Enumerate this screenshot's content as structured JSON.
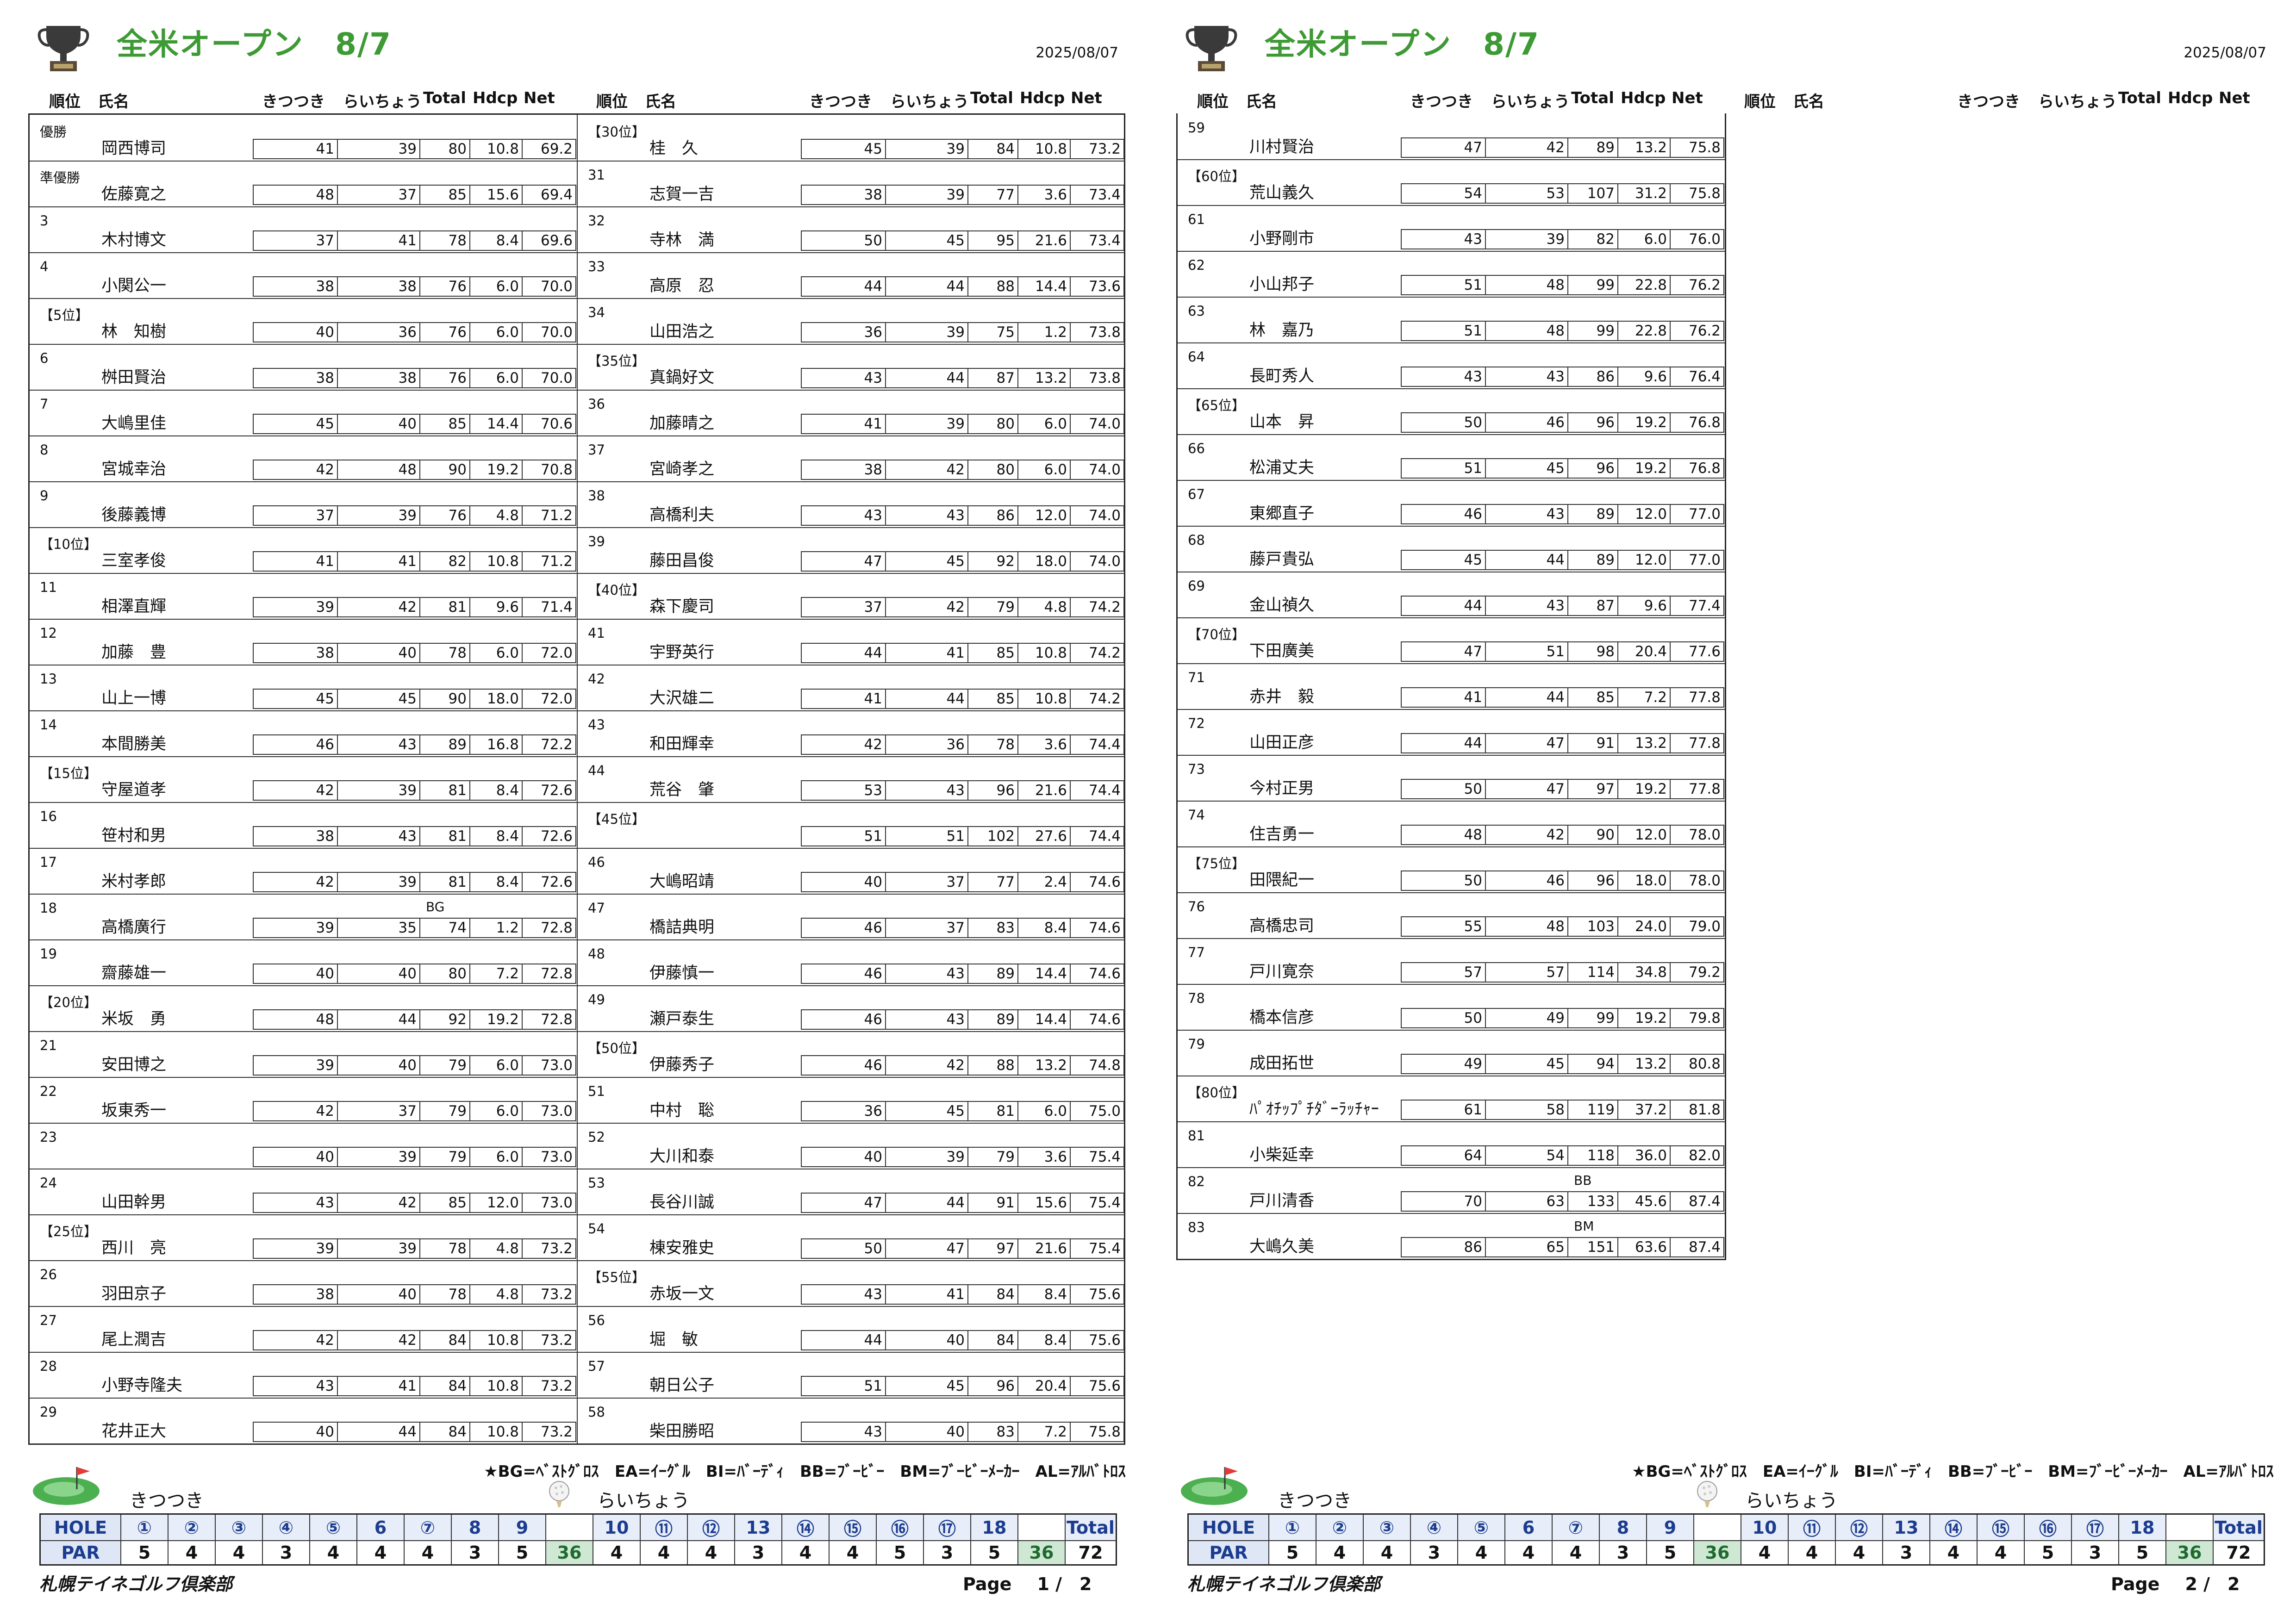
{
  "pages": [
    {
      "title": "全米オープン　8/7",
      "date": "2025/08/07",
      "headers": {
        "rank": "順位",
        "name": "氏名",
        "out": "きつつき",
        "in": "らいちょう",
        "total": "Total",
        "hdcp": "Hdcp",
        "net": "Net"
      },
      "left": [
        {
          "rank": "優勝",
          "name": "岡西博司",
          "out": "41",
          "in": "39",
          "total": "80",
          "hdcp": "10.8",
          "net": "69.2",
          "mark": ""
        },
        {
          "rank": "準優勝",
          "name": "佐藤寛之",
          "out": "48",
          "in": "37",
          "total": "85",
          "hdcp": "15.6",
          "net": "69.4",
          "mark": ""
        },
        {
          "rank": "3",
          "name": "木村博文",
          "out": "37",
          "in": "41",
          "total": "78",
          "hdcp": "8.4",
          "net": "69.6",
          "mark": ""
        },
        {
          "rank": "4",
          "name": "小関公一",
          "out": "38",
          "in": "38",
          "total": "76",
          "hdcp": "6.0",
          "net": "70.0",
          "mark": ""
        },
        {
          "rank": "【5位】",
          "name": "林　知樹",
          "out": "40",
          "in": "36",
          "total": "76",
          "hdcp": "6.0",
          "net": "70.0",
          "mark": ""
        },
        {
          "rank": "6",
          "name": "桝田賢治",
          "out": "38",
          "in": "38",
          "total": "76",
          "hdcp": "6.0",
          "net": "70.0",
          "mark": ""
        },
        {
          "rank": "7",
          "name": "大嶋里佳",
          "out": "45",
          "in": "40",
          "total": "85",
          "hdcp": "14.4",
          "net": "70.6",
          "mark": ""
        },
        {
          "rank": "8",
          "name": "宮城幸治",
          "out": "42",
          "in": "48",
          "total": "90",
          "hdcp": "19.2",
          "net": "70.8",
          "mark": ""
        },
        {
          "rank": "9",
          "name": "後藤義博",
          "out": "37",
          "in": "39",
          "total": "76",
          "hdcp": "4.8",
          "net": "71.2",
          "mark": ""
        },
        {
          "rank": "【10位】",
          "name": "三室孝俊",
          "out": "41",
          "in": "41",
          "total": "82",
          "hdcp": "10.8",
          "net": "71.2",
          "mark": ""
        },
        {
          "rank": "11",
          "name": "相澤直輝",
          "out": "39",
          "in": "42",
          "total": "81",
          "hdcp": "9.6",
          "net": "71.4",
          "mark": ""
        },
        {
          "rank": "12",
          "name": "加藤　豊",
          "out": "38",
          "in": "40",
          "total": "78",
          "hdcp": "6.0",
          "net": "72.0",
          "mark": ""
        },
        {
          "rank": "13",
          "name": "山上一博",
          "out": "45",
          "in": "45",
          "total": "90",
          "hdcp": "18.0",
          "net": "72.0",
          "mark": ""
        },
        {
          "rank": "14",
          "name": "本間勝美",
          "out": "46",
          "in": "43",
          "total": "89",
          "hdcp": "16.8",
          "net": "72.2",
          "mark": ""
        },
        {
          "rank": "【15位】",
          "name": "守屋道孝",
          "out": "42",
          "in": "39",
          "total": "81",
          "hdcp": "8.4",
          "net": "72.6",
          "mark": ""
        },
        {
          "rank": "16",
          "name": "笹村和男",
          "out": "38",
          "in": "43",
          "total": "81",
          "hdcp": "8.4",
          "net": "72.6",
          "mark": ""
        },
        {
          "rank": "17",
          "name": "米村孝郎",
          "out": "42",
          "in": "39",
          "total": "81",
          "hdcp": "8.4",
          "net": "72.6",
          "mark": ""
        },
        {
          "rank": "18",
          "name": "高橋廣行",
          "out": "39",
          "in": "35",
          "total": "74",
          "hdcp": "1.2",
          "net": "72.8",
          "mark": "BG"
        },
        {
          "rank": "19",
          "name": "齋藤雄一",
          "out": "40",
          "in": "40",
          "total": "80",
          "hdcp": "7.2",
          "net": "72.8",
          "mark": ""
        },
        {
          "rank": "【20位】",
          "name": "米坂　勇",
          "out": "48",
          "in": "44",
          "total": "92",
          "hdcp": "19.2",
          "net": "72.8",
          "mark": ""
        },
        {
          "rank": "21",
          "name": "安田博之",
          "out": "39",
          "in": "40",
          "total": "79",
          "hdcp": "6.0",
          "net": "73.0",
          "mark": ""
        },
        {
          "rank": "22",
          "name": "坂東秀一",
          "out": "42",
          "in": "37",
          "total": "79",
          "hdcp": "6.0",
          "net": "73.0",
          "mark": ""
        },
        {
          "rank": "23",
          "name": "",
          "out": "40",
          "in": "39",
          "total": "79",
          "hdcp": "6.0",
          "net": "73.0",
          "mark": ""
        },
        {
          "rank": "24",
          "name": "山田幹男",
          "out": "43",
          "in": "42",
          "total": "85",
          "hdcp": "12.0",
          "net": "73.0",
          "mark": ""
        },
        {
          "rank": "【25位】",
          "name": "西川　亮",
          "out": "39",
          "in": "39",
          "total": "78",
          "hdcp": "4.8",
          "net": "73.2",
          "mark": ""
        },
        {
          "rank": "26",
          "name": "羽田京子",
          "out": "38",
          "in": "40",
          "total": "78",
          "hdcp": "4.8",
          "net": "73.2",
          "mark": ""
        },
        {
          "rank": "27",
          "name": "尾上潤吉",
          "out": "42",
          "in": "42",
          "total": "84",
          "hdcp": "10.8",
          "net": "73.2",
          "mark": ""
        },
        {
          "rank": "28",
          "name": "小野寺隆夫",
          "out": "43",
          "in": "41",
          "total": "84",
          "hdcp": "10.8",
          "net": "73.2",
          "mark": ""
        },
        {
          "rank": "29",
          "name": "花井正大",
          "out": "40",
          "in": "44",
          "total": "84",
          "hdcp": "10.8",
          "net": "73.2",
          "mark": ""
        }
      ],
      "right": [
        {
          "rank": "【30位】",
          "name": "桂　久",
          "out": "45",
          "in": "39",
          "total": "84",
          "hdcp": "10.8",
          "net": "73.2",
          "mark": ""
        },
        {
          "rank": "31",
          "name": "志賀一吉",
          "out": "38",
          "in": "39",
          "total": "77",
          "hdcp": "3.6",
          "net": "73.4",
          "mark": ""
        },
        {
          "rank": "32",
          "name": "寺林　満",
          "out": "50",
          "in": "45",
          "total": "95",
          "hdcp": "21.6",
          "net": "73.4",
          "mark": ""
        },
        {
          "rank": "33",
          "name": "高原　忍",
          "out": "44",
          "in": "44",
          "total": "88",
          "hdcp": "14.4",
          "net": "73.6",
          "mark": ""
        },
        {
          "rank": "34",
          "name": "山田浩之",
          "out": "36",
          "in": "39",
          "total": "75",
          "hdcp": "1.2",
          "net": "73.8",
          "mark": ""
        },
        {
          "rank": "【35位】",
          "name": "真鍋好文",
          "out": "43",
          "in": "44",
          "total": "87",
          "hdcp": "13.2",
          "net": "73.8",
          "mark": ""
        },
        {
          "rank": "36",
          "name": "加藤晴之",
          "out": "41",
          "in": "39",
          "total": "80",
          "hdcp": "6.0",
          "net": "74.0",
          "mark": ""
        },
        {
          "rank": "37",
          "name": "宮崎孝之",
          "out": "38",
          "in": "42",
          "total": "80",
          "hdcp": "6.0",
          "net": "74.0",
          "mark": ""
        },
        {
          "rank": "38",
          "name": "高橋利夫",
          "out": "43",
          "in": "43",
          "total": "86",
          "hdcp": "12.0",
          "net": "74.0",
          "mark": ""
        },
        {
          "rank": "39",
          "name": "藤田昌俊",
          "out": "47",
          "in": "45",
          "total": "92",
          "hdcp": "18.0",
          "net": "74.0",
          "mark": ""
        },
        {
          "rank": "【40位】",
          "name": "森下慶司",
          "out": "37",
          "in": "42",
          "total": "79",
          "hdcp": "4.8",
          "net": "74.2",
          "mark": ""
        },
        {
          "rank": "41",
          "name": "宇野英行",
          "out": "44",
          "in": "41",
          "total": "85",
          "hdcp": "10.8",
          "net": "74.2",
          "mark": ""
        },
        {
          "rank": "42",
          "name": "大沢雄二",
          "out": "41",
          "in": "44",
          "total": "85",
          "hdcp": "10.8",
          "net": "74.2",
          "mark": ""
        },
        {
          "rank": "43",
          "name": "和田輝幸",
          "out": "42",
          "in": "36",
          "total": "78",
          "hdcp": "3.6",
          "net": "74.4",
          "mark": ""
        },
        {
          "rank": "44",
          "name": "荒谷　肇",
          "out": "53",
          "in": "43",
          "total": "96",
          "hdcp": "21.6",
          "net": "74.4",
          "mark": ""
        },
        {
          "rank": "【45位】",
          "name": "",
          "out": "51",
          "in": "51",
          "total": "102",
          "hdcp": "27.6",
          "net": "74.4",
          "mark": ""
        },
        {
          "rank": "46",
          "name": "大嶋昭靖",
          "out": "40",
          "in": "37",
          "total": "77",
          "hdcp": "2.4",
          "net": "74.6",
          "mark": ""
        },
        {
          "rank": "47",
          "name": "橋詰典明",
          "out": "46",
          "in": "37",
          "total": "83",
          "hdcp": "8.4",
          "net": "74.6",
          "mark": ""
        },
        {
          "rank": "48",
          "name": "伊藤慎一",
          "out": "46",
          "in": "43",
          "total": "89",
          "hdcp": "14.4",
          "net": "74.6",
          "mark": ""
        },
        {
          "rank": "49",
          "name": "瀬戸泰生",
          "out": "46",
          "in": "43",
          "total": "89",
          "hdcp": "14.4",
          "net": "74.6",
          "mark": ""
        },
        {
          "rank": "【50位】",
          "name": "伊藤秀子",
          "out": "46",
          "in": "42",
          "total": "88",
          "hdcp": "13.2",
          "net": "74.8",
          "mark": ""
        },
        {
          "rank": "51",
          "name": "中村　聡",
          "out": "36",
          "in": "45",
          "total": "81",
          "hdcp": "6.0",
          "net": "75.0",
          "mark": ""
        },
        {
          "rank": "52",
          "name": "大川和泰",
          "out": "40",
          "in": "39",
          "total": "79",
          "hdcp": "3.6",
          "net": "75.4",
          "mark": ""
        },
        {
          "rank": "53",
          "name": "長谷川誠",
          "out": "47",
          "in": "44",
          "total": "91",
          "hdcp": "15.6",
          "net": "75.4",
          "mark": ""
        },
        {
          "rank": "54",
          "name": "棟安雅史",
          "out": "50",
          "in": "47",
          "total": "97",
          "hdcp": "21.6",
          "net": "75.4",
          "mark": ""
        },
        {
          "rank": "【55位】",
          "name": "赤坂一文",
          "out": "43",
          "in": "41",
          "total": "84",
          "hdcp": "8.4",
          "net": "75.6",
          "mark": ""
        },
        {
          "rank": "56",
          "name": "堀　敏",
          "out": "44",
          "in": "40",
          "total": "84",
          "hdcp": "8.4",
          "net": "75.6",
          "mark": ""
        },
        {
          "rank": "57",
          "name": "朝日公子",
          "out": "51",
          "in": "45",
          "total": "96",
          "hdcp": "20.4",
          "net": "75.6",
          "mark": ""
        },
        {
          "rank": "58",
          "name": "柴田勝昭",
          "out": "43",
          "in": "40",
          "total": "83",
          "hdcp": "7.2",
          "net": "75.8",
          "mark": ""
        }
      ],
      "page_label": "Page",
      "page_no": "1 /　2"
    },
    {
      "title": "全米オープン　8/7",
      "date": "2025/08/07",
      "headers": {
        "rank": "順位",
        "name": "氏名",
        "out": "きつつき",
        "in": "らいちょう",
        "total": "Total",
        "hdcp": "Hdcp",
        "net": "Net"
      },
      "left": [
        {
          "rank": "59",
          "name": "川村賢治",
          "out": "47",
          "in": "42",
          "total": "89",
          "hdcp": "13.2",
          "net": "75.8",
          "mark": ""
        },
        {
          "rank": "【60位】",
          "name": "荒山義久",
          "out": "54",
          "in": "53",
          "total": "107",
          "hdcp": "31.2",
          "net": "75.8",
          "mark": ""
        },
        {
          "rank": "61",
          "name": "小野剛市",
          "out": "43",
          "in": "39",
          "total": "82",
          "hdcp": "6.0",
          "net": "76.0",
          "mark": ""
        },
        {
          "rank": "62",
          "name": "小山邦子",
          "out": "51",
          "in": "48",
          "total": "99",
          "hdcp": "22.8",
          "net": "76.2",
          "mark": ""
        },
        {
          "rank": "63",
          "name": "林　嘉乃",
          "out": "51",
          "in": "48",
          "total": "99",
          "hdcp": "22.8",
          "net": "76.2",
          "mark": ""
        },
        {
          "rank": "64",
          "name": "長町秀人",
          "out": "43",
          "in": "43",
          "total": "86",
          "hdcp": "9.6",
          "net": "76.4",
          "mark": ""
        },
        {
          "rank": "【65位】",
          "name": "山本　昇",
          "out": "50",
          "in": "46",
          "total": "96",
          "hdcp": "19.2",
          "net": "76.8",
          "mark": ""
        },
        {
          "rank": "66",
          "name": "松浦丈夫",
          "out": "51",
          "in": "45",
          "total": "96",
          "hdcp": "19.2",
          "net": "76.8",
          "mark": ""
        },
        {
          "rank": "67",
          "name": "東郷直子",
          "out": "46",
          "in": "43",
          "total": "89",
          "hdcp": "12.0",
          "net": "77.0",
          "mark": ""
        },
        {
          "rank": "68",
          "name": "藤戸貴弘",
          "out": "45",
          "in": "44",
          "total": "89",
          "hdcp": "12.0",
          "net": "77.0",
          "mark": ""
        },
        {
          "rank": "69",
          "name": "金山禎久",
          "out": "44",
          "in": "43",
          "total": "87",
          "hdcp": "9.6",
          "net": "77.4",
          "mark": ""
        },
        {
          "rank": "【70位】",
          "name": "下田廣美",
          "out": "47",
          "in": "51",
          "total": "98",
          "hdcp": "20.4",
          "net": "77.6",
          "mark": ""
        },
        {
          "rank": "71",
          "name": "赤井　毅",
          "out": "41",
          "in": "44",
          "total": "85",
          "hdcp": "7.2",
          "net": "77.8",
          "mark": ""
        },
        {
          "rank": "72",
          "name": "山田正彦",
          "out": "44",
          "in": "47",
          "total": "91",
          "hdcp": "13.2",
          "net": "77.8",
          "mark": ""
        },
        {
          "rank": "73",
          "name": "今村正男",
          "out": "50",
          "in": "47",
          "total": "97",
          "hdcp": "19.2",
          "net": "77.8",
          "mark": ""
        },
        {
          "rank": "74",
          "name": "住吉勇一",
          "out": "48",
          "in": "42",
          "total": "90",
          "hdcp": "12.0",
          "net": "78.0",
          "mark": ""
        },
        {
          "rank": "【75位】",
          "name": "田隈紀一",
          "out": "50",
          "in": "46",
          "total": "96",
          "hdcp": "18.0",
          "net": "78.0",
          "mark": ""
        },
        {
          "rank": "76",
          "name": "高橋忠司",
          "out": "55",
          "in": "48",
          "total": "103",
          "hdcp": "24.0",
          "net": "79.0",
          "mark": ""
        },
        {
          "rank": "77",
          "name": "戸川寛奈",
          "out": "57",
          "in": "57",
          "total": "114",
          "hdcp": "34.8",
          "net": "79.2",
          "mark": ""
        },
        {
          "rank": "78",
          "name": "橋本信彦",
          "out": "50",
          "in": "49",
          "total": "99",
          "hdcp": "19.2",
          "net": "79.8",
          "mark": ""
        },
        {
          "rank": "79",
          "name": "成田拓世",
          "out": "49",
          "in": "45",
          "total": "94",
          "hdcp": "13.2",
          "net": "80.8",
          "mark": ""
        },
        {
          "rank": "【80位】",
          "name": "ﾊﾟｵﾁｯﾌﾟﾁﾀﾞｰﾗｯﾁｬｰ",
          "out": "61",
          "in": "58",
          "total": "119",
          "hdcp": "37.2",
          "net": "81.8",
          "mark": ""
        },
        {
          "rank": "81",
          "name": "小柴延幸",
          "out": "64",
          "in": "54",
          "total": "118",
          "hdcp": "36.0",
          "net": "82.0",
          "mark": ""
        },
        {
          "rank": "82",
          "name": "戸川清香",
          "out": "70",
          "in": "63",
          "total": "133",
          "hdcp": "45.6",
          "net": "87.4",
          "mark": "BB"
        },
        {
          "rank": "83",
          "name": "大嶋久美",
          "out": "86",
          "in": "65",
          "total": "151",
          "hdcp": "63.6",
          "net": "87.4",
          "mark": "BM"
        }
      ],
      "right": [],
      "page_label": "Page",
      "page_no": "2 /　2"
    }
  ],
  "legend": "★BG=ﾍﾞｽﾄｸﾞﾛｽ　EA=ｲｰｸﾞﾙ　BI=ﾊﾞｰﾃﾞｨ　BB=ﾌﾞｰﾋﾞｰ　BM=ﾌﾞｰﾋﾞｰﾒｰｶｰ　AL=ｱﾙﾊﾞﾄﾛｽ",
  "course_out": "きつつき",
  "course_in": "らいちょう",
  "hole_label": "HOLE",
  "par_label": "PAR",
  "holes_out": [
    "①",
    "②",
    "③",
    "④",
    "⑤",
    "6",
    "⑦",
    "8",
    "9"
  ],
  "holes_in": [
    "10",
    "⑪",
    "⑫",
    "13",
    "⑭",
    "⑮",
    "⑯",
    "⑰",
    "18"
  ],
  "par_out": [
    "5",
    "4",
    "4",
    "3",
    "4",
    "4",
    "4",
    "3",
    "5"
  ],
  "par_in": [
    "4",
    "4",
    "4",
    "3",
    "4",
    "4",
    "5",
    "3",
    "5"
  ],
  "out_total": "36",
  "in_total": "36",
  "total_label": "Total",
  "total_par": "72",
  "club": "札幌テイネゴルフ倶楽部",
  "colors": {
    "title": "#3e9a34",
    "hole_text": "#1c3d8f",
    "subtotal_bg": "#cfe8d4"
  }
}
